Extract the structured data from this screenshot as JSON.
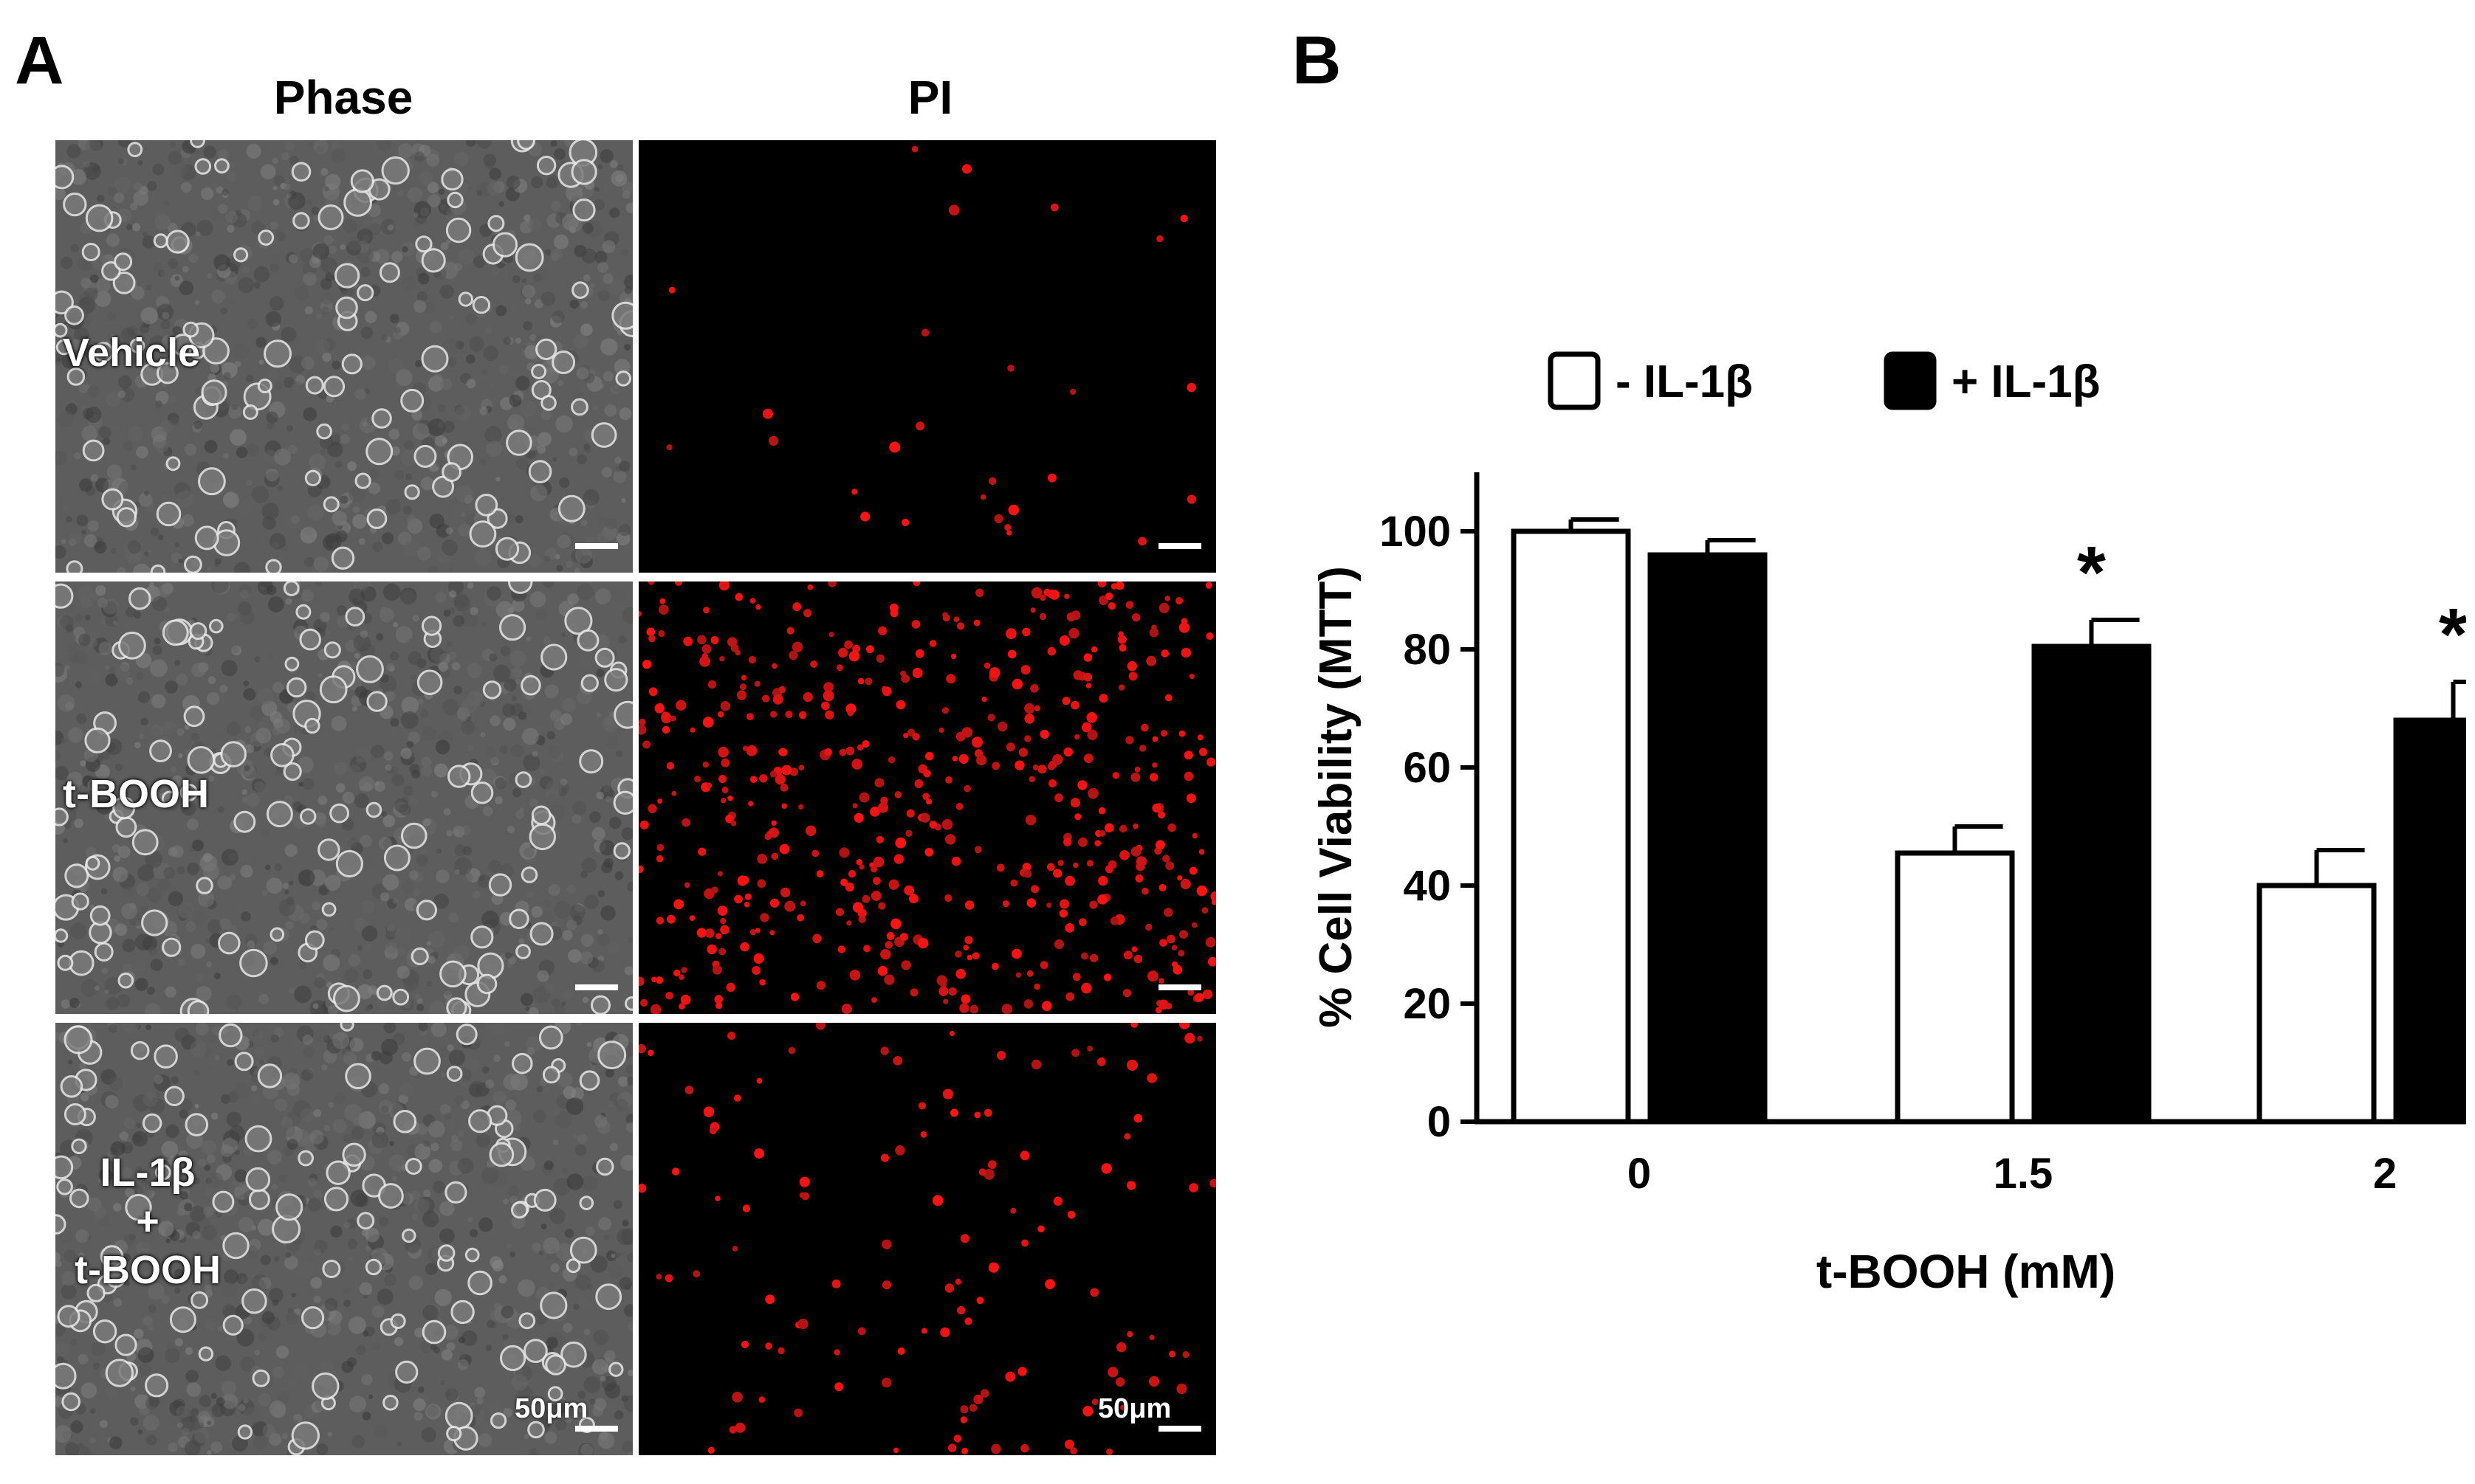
{
  "panel_a": {
    "letter": "A",
    "columns": [
      "Phase",
      "PI"
    ],
    "rows": [
      {
        "label_lines": [
          "Vehicle"
        ],
        "pi_density": "low"
      },
      {
        "label_lines": [
          "t-BOOH"
        ],
        "pi_density": "high"
      },
      {
        "label_lines": [
          "IL-1β",
          "+",
          "t-BOOH"
        ],
        "pi_density": "medium"
      }
    ],
    "scale_bar": "50μm"
  },
  "panel_b": {
    "letter": "B"
  },
  "chart_data": {
    "type": "bar",
    "categories": [
      "0",
      "1.5",
      "2"
    ],
    "series": [
      {
        "name": "- IL-1β",
        "fill": "#ffffff",
        "values": [
          100,
          45.5,
          40
        ],
        "errors": [
          2,
          4.5,
          6
        ]
      },
      {
        "name": "+ IL-1β",
        "fill": "#000000",
        "values": [
          96,
          80.5,
          68
        ],
        "errors": [
          2.5,
          4.5,
          6.5
        ]
      }
    ],
    "significance": [
      {
        "category": "1.5",
        "series": "+ IL-1β",
        "mark": "*"
      },
      {
        "category": "2",
        "series": "+ IL-1β",
        "mark": "*"
      }
    ],
    "xlabel": "t-BOOH (mM)",
    "ylabel": "% Cell Viability (MTT)",
    "ylim": [
      0,
      110
    ],
    "yticks": [
      0,
      20,
      40,
      60,
      80,
      100
    ],
    "legend_position": "top",
    "grid": false
  }
}
